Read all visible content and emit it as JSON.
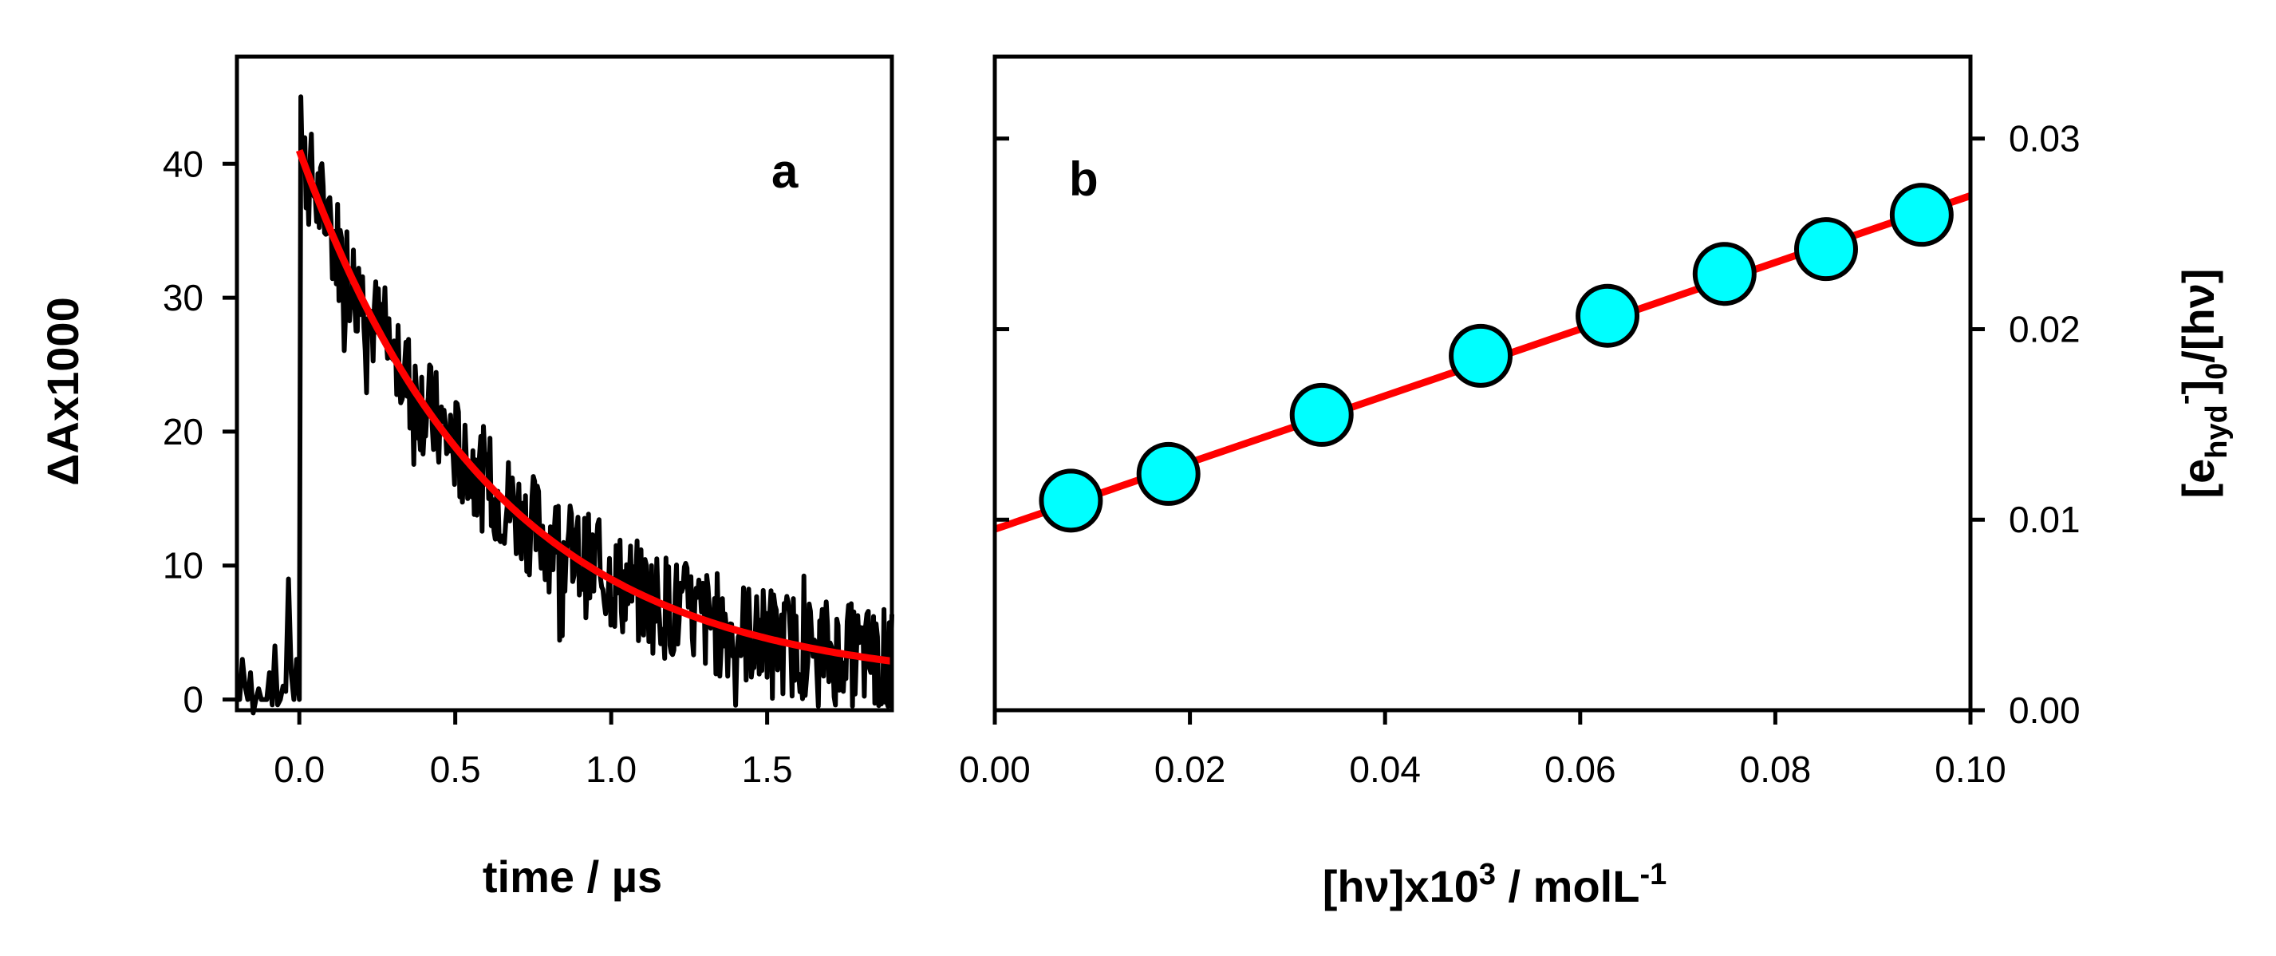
{
  "chart_data": [
    {
      "type": "line",
      "panel_label": "a",
      "xlabel": "time / µs",
      "ylabel": "ΔAx1000",
      "xlim": [
        -0.2,
        1.9
      ],
      "ylim": [
        -0.8,
        48
      ],
      "xticks": [
        0.0,
        0.5,
        1.0,
        1.5
      ],
      "xtick_labels": [
        "0.0",
        "0.5",
        "1.0",
        "1.5"
      ],
      "yticks": [
        0,
        10,
        20,
        30,
        40
      ],
      "ytick_labels": [
        "0",
        "10",
        "20",
        "30",
        "40"
      ],
      "series": [
        {
          "name": "transient absorption trace",
          "color": "#000000",
          "signal": {
            "baseline_before": [
              0,
              1,
              3,
              1,
              0,
              2,
              0,
              1,
              3,
              0,
              1,
              0,
              2,
              1,
              4,
              1,
              0,
              2,
              1,
              9,
              2,
              0,
              3
            ],
            "rise_time": 0.0,
            "initial_amplitude": 41,
            "lifetime_us": 0.62,
            "noise_amplitude": 4,
            "peak": 45,
            "samples": 450
          }
        },
        {
          "name": "single-exponential fit",
          "color": "#ff0000",
          "fit": {
            "A0": 41,
            "tau_us": 0.62,
            "y_inf": 1.0,
            "x_start": 0.0,
            "x_end": 1.9
          }
        }
      ]
    },
    {
      "type": "scatter",
      "panel_label": "b",
      "xlabel_main": "[hν]x10",
      "xlabel_sup": "3",
      "xlabel_mid": " / molL",
      "xlabel_sup2": "-1",
      "ylabel_parts": {
        "open": "[e",
        "sub1": "hyd",
        "sup1": "-",
        "close": "]",
        "sub2": "0",
        "tail": "/[hν]"
      },
      "xlim": [
        0.0,
        0.1
      ],
      "ylim": [
        0.0,
        0.0343
      ],
      "xticks": [
        0.0,
        0.02,
        0.04,
        0.06,
        0.08,
        0.1
      ],
      "xtick_labels": [
        "0.00",
        "0.02",
        "0.04",
        "0.06",
        "0.08",
        "0.10"
      ],
      "yticks": [
        0.0,
        0.01,
        0.02,
        0.03
      ],
      "ytick_labels": [
        "0.00",
        "0.01",
        "0.02",
        "0.03"
      ],
      "series": [
        {
          "name": "data points",
          "color": "#00ffff",
          "x": [
            0.0078,
            0.0178,
            0.0335,
            0.0498,
            0.0628,
            0.0748,
            0.0852,
            0.095
          ],
          "y": [
            0.011,
            0.0124,
            0.0155,
            0.0186,
            0.0207,
            0.0229,
            0.0242,
            0.026
          ]
        },
        {
          "name": "linear fit",
          "color": "#ff0000",
          "line": {
            "slope": 0.175,
            "intercept": 0.0095,
            "x_start": 0.0,
            "x_end": 0.1
          }
        }
      ]
    }
  ]
}
